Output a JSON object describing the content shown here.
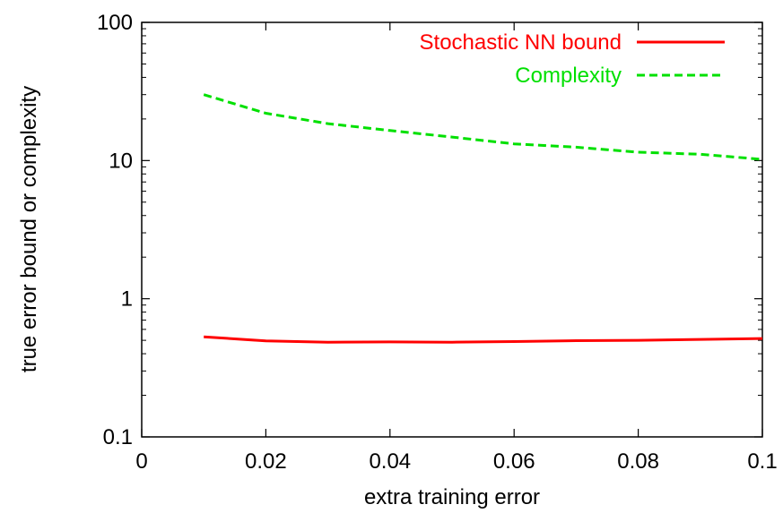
{
  "chart_data": {
    "type": "line",
    "title": "",
    "xlabel": "extra training error",
    "ylabel": "true error bound or complexity",
    "xlim": [
      0,
      0.1
    ],
    "ylim": [
      0.1,
      100
    ],
    "yscale": "log",
    "grid": false,
    "legend_position": "top-right",
    "x_ticks": [
      {
        "value": 0,
        "label": "0"
      },
      {
        "value": 0.02,
        "label": "0.02"
      },
      {
        "value": 0.04,
        "label": "0.04"
      },
      {
        "value": 0.06,
        "label": "0.06"
      },
      {
        "value": 0.08,
        "label": "0.08"
      },
      {
        "value": 0.1,
        "label": "0.1"
      }
    ],
    "y_ticks": [
      {
        "value": 0.1,
        "label": "0.1"
      },
      {
        "value": 1,
        "label": "1"
      },
      {
        "value": 10,
        "label": "10"
      },
      {
        "value": 100,
        "label": "100"
      }
    ],
    "x": [
      0.01,
      0.02,
      0.03,
      0.04,
      0.05,
      0.06,
      0.07,
      0.08,
      0.09,
      0.1
    ],
    "series": [
      {
        "name": "Stochastic NN bound",
        "color": "#ff0000",
        "dash": "solid",
        "values": [
          0.53,
          0.495,
          0.485,
          0.487,
          0.485,
          0.49,
          0.497,
          0.5,
          0.508,
          0.515
        ]
      },
      {
        "name": "Complexity",
        "color": "#00e000",
        "dash": "dashed",
        "values": [
          30,
          22,
          18.5,
          16.5,
          14.8,
          13.2,
          12.5,
          11.5,
          11.1,
          10.2
        ]
      }
    ]
  }
}
